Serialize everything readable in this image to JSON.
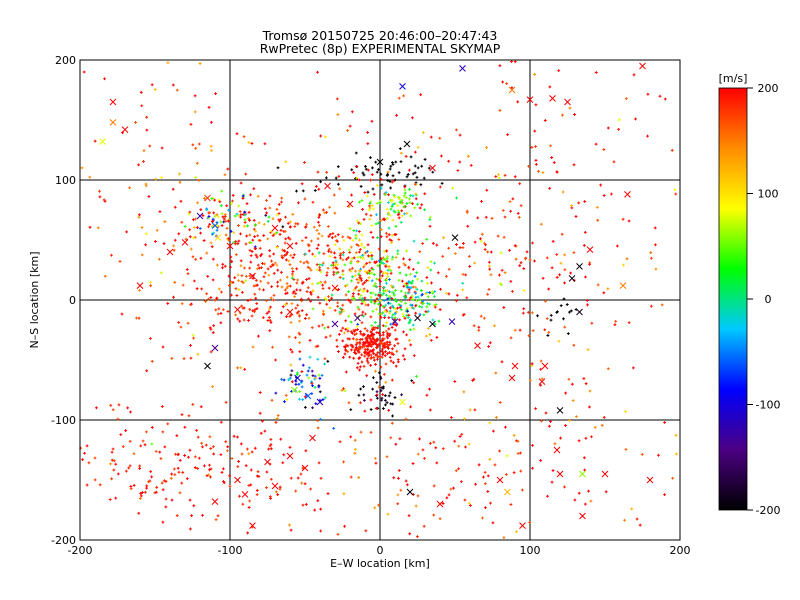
{
  "chart_data": {
    "type": "scatter",
    "title": "Tromsø 20150725 20:46:00–20:47:43",
    "subtitle": "RwPretec (8p) EXPERIMENTAL SKYMAP",
    "xlabel": "E–W location [km]",
    "ylabel": "N–S location [km]",
    "xlim": [
      -200,
      200
    ],
    "ylim": [
      -200,
      200
    ],
    "xticks": [
      -200,
      -100,
      0,
      100,
      200
    ],
    "yticks": [
      -200,
      -100,
      0,
      100,
      200
    ],
    "grid": true,
    "colorbar": {
      "label": "[m/s]",
      "min": -200,
      "max": 200,
      "ticks": [
        200,
        100,
        0,
        -100,
        -200
      ],
      "placement": "right",
      "stops": [
        "#000000",
        "#4b0082",
        "#0000ff",
        "#00c8ff",
        "#00ff00",
        "#ffff00",
        "#ff8c00",
        "#ff0000"
      ]
    },
    "markers": {
      "dot": "+",
      "cross": "x"
    },
    "clusters": [
      {
        "cx": -60,
        "cy": 25,
        "sx": 40,
        "sy": 35,
        "n": 520,
        "vmean": 180,
        "vsd": 25
      },
      {
        "cx": -5,
        "cy": -38,
        "sx": 10,
        "sy": 9,
        "n": 260,
        "vmean": 195,
        "vsd": 10
      },
      {
        "cx": -5,
        "cy": 25,
        "sx": 20,
        "sy": 22,
        "n": 200,
        "vmean": 60,
        "vsd": 50
      },
      {
        "cx": 15,
        "cy": 0,
        "sx": 14,
        "sy": 12,
        "n": 180,
        "vmean": 20,
        "vsd": 45
      },
      {
        "cx": 0,
        "cy": 105,
        "sx": 25,
        "sy": 8,
        "n": 70,
        "vmean": -200,
        "vsd": 5
      },
      {
        "cx": 12,
        "cy": 80,
        "sx": 12,
        "sy": 8,
        "n": 80,
        "vmean": 50,
        "vsd": 45
      },
      {
        "cx": -100,
        "cy": 65,
        "sx": 15,
        "sy": 12,
        "n": 90,
        "vmean": 50,
        "vsd": 90
      },
      {
        "cx": -50,
        "cy": -70,
        "sx": 8,
        "sy": 12,
        "n": 60,
        "vmean": -70,
        "vsd": 60
      },
      {
        "cx": -150,
        "cy": -140,
        "sx": 30,
        "sy": 25,
        "n": 110,
        "vmean": 190,
        "vsd": 15
      },
      {
        "cx": -80,
        "cy": -140,
        "sx": 25,
        "sy": 25,
        "n": 90,
        "vmean": 190,
        "vsd": 15
      },
      {
        "cx": 30,
        "cy": -150,
        "sx": 30,
        "sy": 25,
        "n": 70,
        "vmean": 185,
        "vsd": 25
      },
      {
        "cx": 120,
        "cy": 80,
        "sx": 50,
        "sy": 60,
        "n": 120,
        "vmean": 180,
        "vsd": 40
      },
      {
        "cx": -150,
        "cy": 100,
        "sx": 35,
        "sy": 50,
        "n": 90,
        "vmean": 180,
        "vsd": 40
      },
      {
        "cx": 80,
        "cy": 30,
        "sx": 30,
        "sy": 30,
        "n": 70,
        "vmean": 185,
        "vsd": 25
      },
      {
        "cx": 0,
        "cy": -80,
        "sx": 10,
        "sy": 8,
        "n": 40,
        "vmean": -190,
        "vsd": 15
      },
      {
        "cx": 120,
        "cy": -10,
        "sx": 8,
        "sy": 10,
        "n": 14,
        "vmean": -200,
        "vsd": 5
      },
      {
        "cx": 120,
        "cy": -110,
        "sx": 50,
        "sy": 50,
        "n": 80,
        "vmean": 180,
        "vsd": 40
      },
      {
        "cx": 0,
        "cy": 0,
        "sx": 110,
        "sy": 110,
        "n": 260,
        "vmean": 170,
        "vsd": 50
      }
    ],
    "crosses": [
      {
        "x": -178,
        "y": 165,
        "v": 200
      },
      {
        "x": -178,
        "y": 148,
        "v": 150
      },
      {
        "x": -170,
        "y": 142,
        "v": 200
      },
      {
        "x": -185,
        "y": 132,
        "v": 80
      },
      {
        "x": 55,
        "y": 193,
        "v": -120
      },
      {
        "x": 15,
        "y": 178,
        "v": -100
      },
      {
        "x": 88,
        "y": 175,
        "v": 150
      },
      {
        "x": 100,
        "y": 167,
        "v": 200
      },
      {
        "x": 115,
        "y": 168,
        "v": 200
      },
      {
        "x": 125,
        "y": 165,
        "v": 200
      },
      {
        "x": 175,
        "y": 195,
        "v": 200
      },
      {
        "x": 165,
        "y": 88,
        "v": 200
      },
      {
        "x": 140,
        "y": 42,
        "v": 200
      },
      {
        "x": 133,
        "y": 28,
        "v": -190
      },
      {
        "x": 128,
        "y": 18,
        "v": -190
      },
      {
        "x": 133,
        "y": -10,
        "v": -190
      },
      {
        "x": 162,
        "y": 12,
        "v": 150
      },
      {
        "x": 50,
        "y": 52,
        "v": -200
      },
      {
        "x": -115,
        "y": 85,
        "v": 180
      },
      {
        "x": -120,
        "y": 70,
        "v": -120
      },
      {
        "x": -110,
        "y": 62,
        "v": -60
      },
      {
        "x": -130,
        "y": 48,
        "v": 200
      },
      {
        "x": -140,
        "y": 40,
        "v": 200
      },
      {
        "x": -100,
        "y": 45,
        "v": 200
      },
      {
        "x": -108,
        "y": 52,
        "v": 100
      },
      {
        "x": -160,
        "y": 12,
        "v": 200
      },
      {
        "x": -110,
        "y": -40,
        "v": -140
      },
      {
        "x": -115,
        "y": -55,
        "v": -200
      },
      {
        "x": -30,
        "y": -20,
        "v": -140
      },
      {
        "x": -15,
        "y": -15,
        "v": -140
      },
      {
        "x": 10,
        "y": -18,
        "v": -120
      },
      {
        "x": 25,
        "y": -15,
        "v": -190
      },
      {
        "x": 35,
        "y": -20,
        "v": -190
      },
      {
        "x": 48,
        "y": -18,
        "v": -120
      },
      {
        "x": -55,
        "y": -65,
        "v": -100
      },
      {
        "x": -57,
        "y": -75,
        "v": 60
      },
      {
        "x": -48,
        "y": -80,
        "v": -60
      },
      {
        "x": -40,
        "y": -85,
        "v": -120
      },
      {
        "x": 65,
        "y": -38,
        "v": 200
      },
      {
        "x": 90,
        "y": -55,
        "v": 200
      },
      {
        "x": 110,
        "y": -55,
        "v": 200
      },
      {
        "x": 108,
        "y": -68,
        "v": 200
      },
      {
        "x": 88,
        "y": -65,
        "v": 200
      },
      {
        "x": 120,
        "y": -92,
        "v": -200
      },
      {
        "x": 118,
        "y": -125,
        "v": 200
      },
      {
        "x": 120,
        "y": -145,
        "v": 200
      },
      {
        "x": 135,
        "y": -145,
        "v": 60
      },
      {
        "x": 150,
        "y": -145,
        "v": 200
      },
      {
        "x": 85,
        "y": -160,
        "v": 120
      },
      {
        "x": 20,
        "y": -160,
        "v": -200
      },
      {
        "x": -95,
        "y": -150,
        "v": 200
      },
      {
        "x": -90,
        "y": -162,
        "v": 200
      },
      {
        "x": -75,
        "y": -135,
        "v": 200
      },
      {
        "x": -70,
        "y": -155,
        "v": 200
      },
      {
        "x": -60,
        "y": -130,
        "v": 200
      },
      {
        "x": -50,
        "y": -140,
        "v": 200
      },
      {
        "x": -110,
        "y": -168,
        "v": 200
      },
      {
        "x": -85,
        "y": -188,
        "v": 200
      },
      {
        "x": 80,
        "y": -150,
        "v": 200
      },
      {
        "x": 40,
        "y": -170,
        "v": 200
      },
      {
        "x": -45,
        "y": -115,
        "v": 200
      },
      {
        "x": 95,
        "y": -188,
        "v": 200
      },
      {
        "x": 135,
        "y": -180,
        "v": 200
      },
      {
        "x": 180,
        "y": -150,
        "v": 200
      },
      {
        "x": 15,
        "y": -85,
        "v": 80
      },
      {
        "x": 18,
        "y": 130,
        "v": -200
      },
      {
        "x": 0,
        "y": 115,
        "v": -200
      },
      {
        "x": -35,
        "y": 95,
        "v": 200
      },
      {
        "x": 35,
        "y": 110,
        "v": 200
      },
      {
        "x": -20,
        "y": 80,
        "v": 200
      },
      {
        "x": -85,
        "y": 20,
        "v": 200
      },
      {
        "x": -95,
        "y": -8,
        "v": 200
      },
      {
        "x": -60,
        "y": -10,
        "v": 200
      },
      {
        "x": -30,
        "y": 10,
        "v": 200
      },
      {
        "x": -60,
        "y": 45,
        "v": 200
      },
      {
        "x": -70,
        "y": 60,
        "v": 200
      }
    ]
  }
}
